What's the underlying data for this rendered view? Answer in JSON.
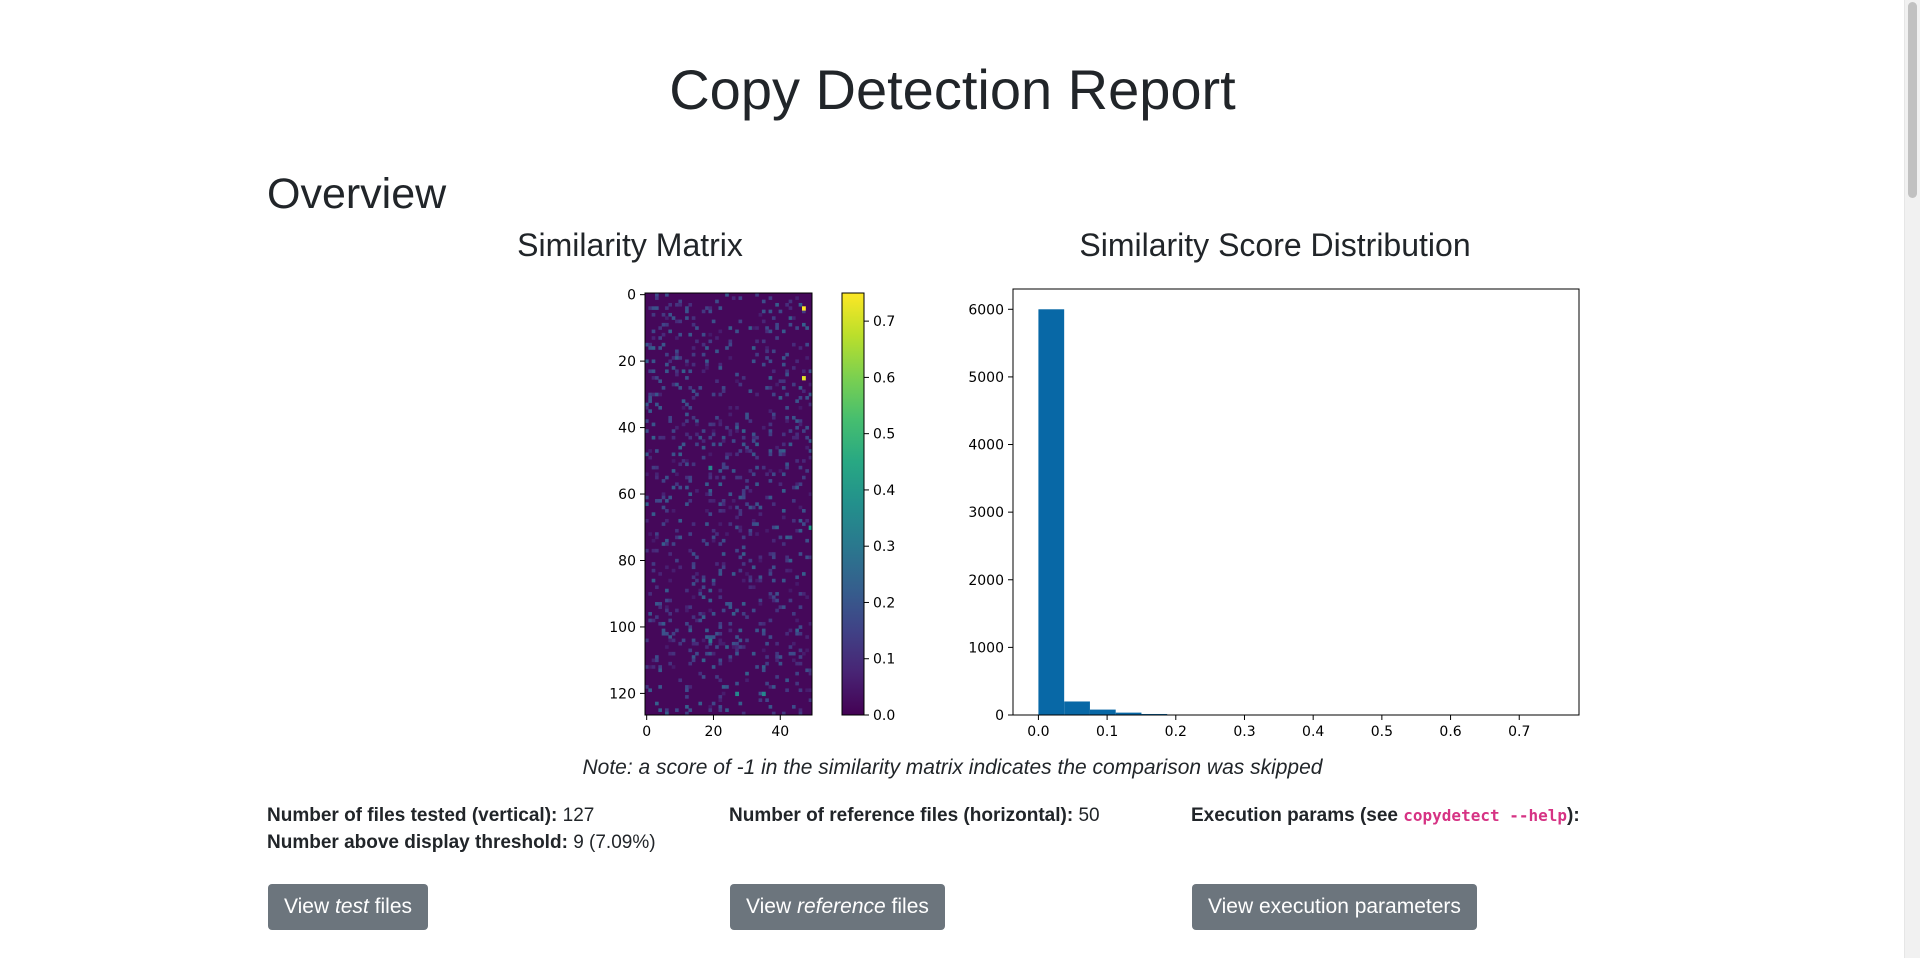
{
  "page": {
    "title": "Copy Detection Report",
    "section": "Overview",
    "note": "Note: a score of -1 in the similarity matrix indicates the comparison was skipped"
  },
  "stats": {
    "files_tested_label": "Number of files tested (vertical):",
    "files_tested_value": "127",
    "above_threshold_label": "Number above display threshold:",
    "above_threshold_value": "9 (7.09%)",
    "reference_files_label": "Number of reference files (horizontal):",
    "reference_files_value": "50",
    "exec_params_prefix": "Execution params (see ",
    "exec_params_code": "copydetect --help",
    "exec_params_suffix": "):"
  },
  "buttons": {
    "test_pre": "View ",
    "test_em": "test",
    "test_post": " files",
    "ref_pre": "View ",
    "ref_em": "reference",
    "ref_post": " files",
    "exec": "View execution parameters"
  },
  "colors": {
    "button_bg": "#6c757d",
    "bar_color": "#0868a6",
    "code_color": "#d63384"
  },
  "chart_data": [
    {
      "type": "heatmap",
      "title": "Similarity Matrix",
      "rows": 127,
      "cols": 50,
      "colormap": "viridis",
      "vmin": 0.0,
      "vmax": 0.75,
      "x_ticks": [
        0,
        20,
        40
      ],
      "y_ticks": [
        0,
        20,
        40,
        60,
        80,
        100,
        120
      ],
      "colorbar_ticks": [
        "0.0",
        "0.1",
        "0.2",
        "0.3",
        "0.4",
        "0.5",
        "0.6",
        "0.7"
      ],
      "highlight_cells": [
        {
          "row": 4,
          "col": 47,
          "value": 0.75
        },
        {
          "row": 25,
          "col": 47,
          "value": 0.72
        },
        {
          "row": 52,
          "col": 19,
          "value": 0.35
        },
        {
          "row": 70,
          "col": 49,
          "value": 0.4
        },
        {
          "row": 120,
          "col": 27,
          "value": 0.35
        },
        {
          "row": 120,
          "col": 35,
          "value": 0.35
        },
        {
          "row": 104,
          "col": 19,
          "value": 0.3
        }
      ]
    },
    {
      "type": "bar",
      "title": "Similarity Score Distribution",
      "bins": [
        {
          "x0": 0.0,
          "x1": 0.0375,
          "count": 6000
        },
        {
          "x0": 0.0375,
          "x1": 0.075,
          "count": 200
        },
        {
          "x0": 0.075,
          "x1": 0.1125,
          "count": 80
        },
        {
          "x0": 0.1125,
          "x1": 0.15,
          "count": 35
        },
        {
          "x0": 0.15,
          "x1": 0.1875,
          "count": 15
        },
        {
          "x0": 0.1875,
          "x1": 0.225,
          "count": 6
        },
        {
          "x0": 0.225,
          "x1": 0.2625,
          "count": 3
        },
        {
          "x0": 0.2625,
          "x1": 0.3,
          "count": 2
        }
      ],
      "x_ticks": [
        "0.0",
        "0.1",
        "0.2",
        "0.3",
        "0.4",
        "0.5",
        "0.6",
        "0.7"
      ],
      "y_ticks": [
        "0",
        "1000",
        "2000",
        "3000",
        "4000",
        "5000",
        "6000"
      ],
      "xlim": [
        -0.037,
        0.787
      ],
      "ylim": [
        0,
        6300
      ]
    }
  ]
}
